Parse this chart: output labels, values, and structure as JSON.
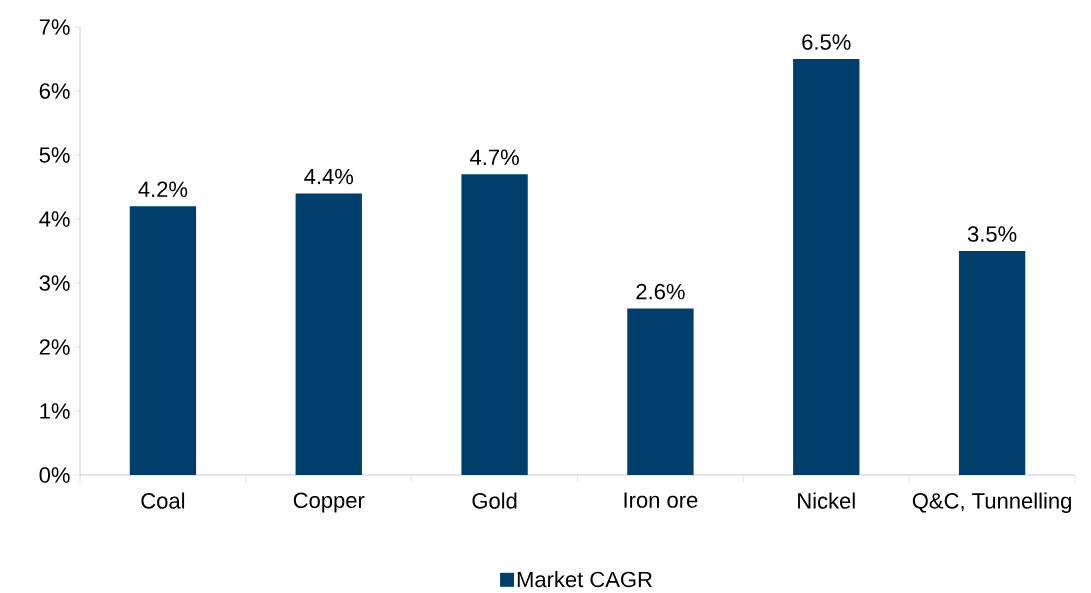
{
  "chart_data": {
    "type": "bar",
    "categories": [
      "Coal",
      "Copper",
      "Gold",
      "Iron ore",
      "Nickel",
      "Q&C, Tunnelling"
    ],
    "series": [
      {
        "name": "Market CAGR",
        "color": "#003f6b",
        "values": [
          4.2,
          4.4,
          4.7,
          2.6,
          6.5,
          3.5
        ]
      }
    ],
    "value_labels": [
      "4.2%",
      "4.4%",
      "4.7%",
      "2.6%",
      "6.5%",
      "3.5%"
    ],
    "ylim": [
      0,
      7
    ],
    "yticks": [
      {
        "value": 0,
        "label": "0%"
      },
      {
        "value": 1,
        "label": "1%"
      },
      {
        "value": 2,
        "label": "2%"
      },
      {
        "value": 3,
        "label": "3%"
      },
      {
        "value": 4,
        "label": "4%"
      },
      {
        "value": 5,
        "label": "5%"
      },
      {
        "value": 6,
        "label": "6%"
      },
      {
        "value": 7,
        "label": "7%"
      }
    ],
    "grid": false,
    "legend": "bottom"
  }
}
